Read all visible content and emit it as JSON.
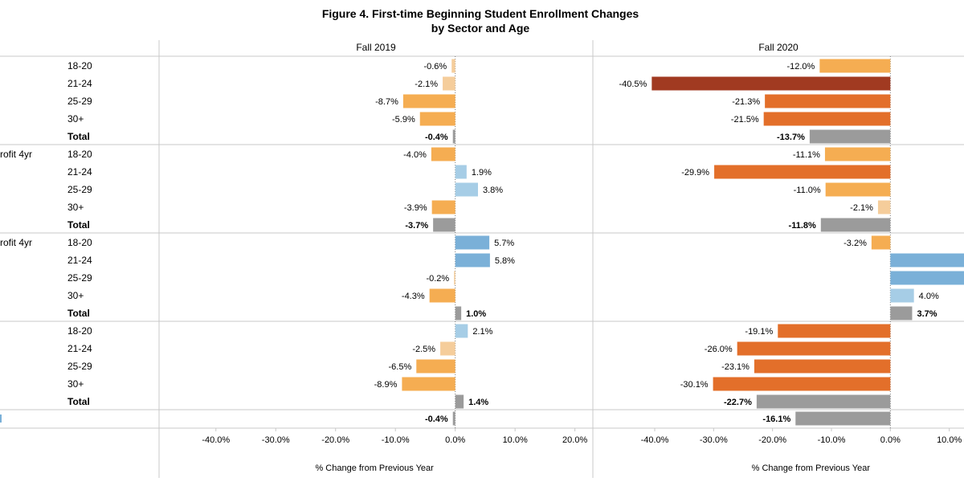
{
  "chart_data": {
    "type": "bar",
    "orientation": "horizontal",
    "title": [
      "Figure 4. First-time Beginning Student Enrollment Changes",
      "by Sector and Age"
    ],
    "panels": [
      "Fall 2019",
      "Fall 2020"
    ],
    "xlabel": "% Change from Previous Year",
    "groups": [
      {
        "label": "",
        "rows": [
          "18-20",
          "21-24",
          "25-29",
          "30+",
          "Total"
        ],
        "values": {
          "Fall 2019": [
            -0.6,
            -2.1,
            -8.7,
            -5.9,
            -0.4
          ],
          "Fall 2020": [
            -12.0,
            -40.5,
            -21.3,
            -21.5,
            -13.7
          ]
        }
      },
      {
        "label": "rofit 4yr",
        "rows": [
          "18-20",
          "21-24",
          "25-29",
          "30+",
          "Total"
        ],
        "values": {
          "Fall 2019": [
            -4.0,
            1.9,
            3.8,
            -3.9,
            -3.7
          ],
          "Fall 2020": [
            -11.1,
            -29.9,
            -11.0,
            -2.1,
            -11.8
          ]
        }
      },
      {
        "label": "rofit 4yr",
        "rows": [
          "18-20",
          "21-24",
          "25-29",
          "30+",
          "Total"
        ],
        "values": {
          "Fall 2019": [
            5.7,
            5.8,
            -0.2,
            -4.3,
            1.0
          ],
          "Fall 2020": [
            -3.2,
            null,
            null,
            4.0,
            3.7
          ]
        }
      },
      {
        "label": "",
        "rows": [
          "18-20",
          "21-24",
          "25-29",
          "30+",
          "Total"
        ],
        "values": {
          "Fall 2019": [
            2.1,
            -2.5,
            -6.5,
            -8.9,
            1.4
          ],
          "Fall 2020": [
            -19.1,
            -26.0,
            -23.1,
            -30.1,
            -22.7
          ]
        }
      },
      {
        "label": "",
        "rows": [
          ""
        ],
        "values": {
          "Fall 2019": [
            -0.4
          ],
          "Fall 2020": [
            -16.1
          ]
        }
      }
    ],
    "offscale_bars": {
      "Fall 2020": [
        {
          "group": 2,
          "row": 1,
          "direction": "positive"
        },
        {
          "group": 2,
          "row": 2,
          "direction": "positive"
        }
      ]
    },
    "ticks": {
      "Fall 2019": [
        "-40.0%",
        "-30.0%",
        "-20.0%",
        "-10.0%",
        "0.0%",
        "10.0%",
        "20.0%"
      ],
      "Fall 2020": [
        "-40.0%",
        "-30.0%",
        "-20.0%",
        "-10.0%",
        "0.0%",
        "10.0%"
      ]
    },
    "tick_values": {
      "Fall 2019": [
        -40,
        -30,
        -20,
        -10,
        0,
        10,
        20
      ],
      "Fall 2020": [
        -40,
        -30,
        -20,
        -10,
        0,
        10
      ]
    },
    "xlim": {
      "Fall 2019": [
        -49.5,
        23
      ],
      "Fall 2020": [
        -50.5,
        12.5
      ]
    },
    "colors": {
      "total": "#9b9b9b",
      "neg_light": "#f5cd9b",
      "neg_mid": "#f5ad52",
      "neg_strong": "#e36f2a",
      "neg_dark": "#a13a21",
      "pos_light": "#a6cde6",
      "pos_mid": "#7ab0d8",
      "axis": "#c8c8c8",
      "zero": "#7a7a7a"
    }
  }
}
